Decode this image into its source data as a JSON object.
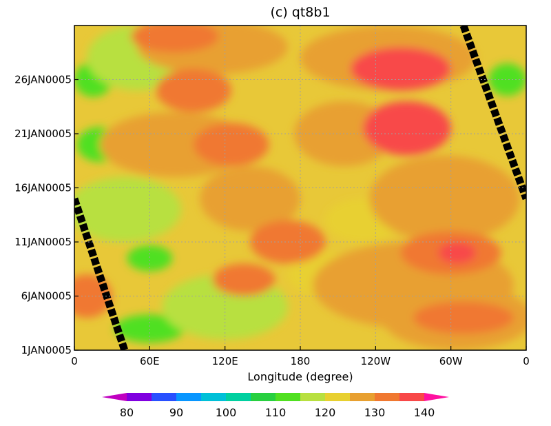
{
  "chart_data": {
    "type": "heatmap",
    "title": "(c) qt8b1",
    "xlabel": "Longitude (degree)",
    "ylabel": "",
    "x_ticks": [
      "0",
      "60E",
      "120E",
      "180",
      "120W",
      "60W",
      "0"
    ],
    "y_ticks": [
      "1JAN0005",
      "6JAN0005",
      "11JAN0005",
      "16JAN0005",
      "21JAN0005",
      "26JAN0005"
    ],
    "xlim": [
      0,
      360
    ],
    "ylim_days": [
      1,
      31
    ],
    "grid": true,
    "levels": [
      80,
      85,
      90,
      95,
      100,
      105,
      110,
      115,
      120,
      125,
      130,
      135,
      140
    ],
    "colorbar_labels": [
      "80",
      "90",
      "100",
      "110",
      "120",
      "130",
      "140"
    ],
    "colorbar_colors": [
      "#c000c0",
      "#8000e0",
      "#2850ff",
      "#0896ff",
      "#00c0d8",
      "#00d0a0",
      "#28d040",
      "#50e020",
      "#b8e040",
      "#e8d030",
      "#e8a030",
      "#f07830",
      "#f84848",
      "#ff10a0"
    ],
    "background_color": "#e8c838",
    "blobs": [
      {
        "lon": 15,
        "day": 26,
        "rlon": 15,
        "rday": 1.6,
        "value": 112
      },
      {
        "lon": 20,
        "day": 20,
        "rlon": 18,
        "rday": 1.6,
        "value": 112
      },
      {
        "lon": 345,
        "day": 26,
        "rlon": 15,
        "rday": 1.5,
        "value": 112
      },
      {
        "lon": 60,
        "day": 3,
        "rlon": 28,
        "rday": 1.3,
        "value": 112
      },
      {
        "lon": 60,
        "day": 9.5,
        "rlon": 18,
        "rday": 1.2,
        "value": 114
      },
      {
        "lon": 40,
        "day": 14,
        "rlon": 45,
        "rday": 3,
        "value": 119
      },
      {
        "lon": 50,
        "day": 28,
        "rlon": 40,
        "rday": 3,
        "value": 119
      },
      {
        "lon": 120,
        "day": 5,
        "rlon": 50,
        "rday": 3,
        "value": 119
      },
      {
        "lon": 200,
        "day": 8,
        "rlon": 30,
        "rday": 2,
        "value": 121
      },
      {
        "lon": 230,
        "day": 13,
        "rlon": 30,
        "rday": 2,
        "value": 121
      },
      {
        "lon": 140,
        "day": 15,
        "rlon": 40,
        "rday": 3,
        "value": 128
      },
      {
        "lon": 215,
        "day": 21,
        "rlon": 40,
        "rday": 3,
        "value": 128
      },
      {
        "lon": 270,
        "day": 7,
        "rlon": 80,
        "rday": 4,
        "value": 128
      },
      {
        "lon": 250,
        "day": 28,
        "rlon": 70,
        "rday": 3,
        "value": 128
      },
      {
        "lon": 80,
        "day": 20,
        "rlon": 60,
        "rday": 3,
        "value": 128
      },
      {
        "lon": 110,
        "day": 29,
        "rlon": 60,
        "rday": 2.5,
        "value": 128
      },
      {
        "lon": 295,
        "day": 15,
        "rlon": 60,
        "rday": 4,
        "value": 129
      },
      {
        "lon": 305,
        "day": 4,
        "rlon": 60,
        "rday": 3,
        "value": 129
      },
      {
        "lon": 80,
        "day": 30,
        "rlon": 35,
        "rday": 1.5,
        "value": 133
      },
      {
        "lon": 95,
        "day": 25,
        "rlon": 30,
        "rday": 2,
        "value": 133
      },
      {
        "lon": 125,
        "day": 20,
        "rlon": 30,
        "rday": 2,
        "value": 133
      },
      {
        "lon": 170,
        "day": 11,
        "rlon": 30,
        "rday": 2,
        "value": 133
      },
      {
        "lon": 135,
        "day": 7.5,
        "rlon": 25,
        "rday": 1.5,
        "value": 133
      },
      {
        "lon": 265,
        "day": 21.5,
        "rlon": 35,
        "rday": 2.5,
        "value": 136
      },
      {
        "lon": 260,
        "day": 27,
        "rlon": 40,
        "rday": 2,
        "value": 136
      },
      {
        "lon": 300,
        "day": 10,
        "rlon": 40,
        "rday": 2,
        "value": 133
      },
      {
        "lon": 310,
        "day": 4,
        "rlon": 40,
        "rday": 1.5,
        "value": 133
      },
      {
        "lon": 10,
        "day": 6,
        "rlon": 20,
        "rday": 2,
        "value": 133
      },
      {
        "lon": 275,
        "day": 22,
        "rlon": 20,
        "rday": 1.3,
        "value": 138
      },
      {
        "lon": 260,
        "day": 27.3,
        "rlon": 25,
        "rday": 1.3,
        "value": 138
      },
      {
        "lon": 305,
        "day": 10,
        "rlon": 15,
        "rday": 1,
        "value": 138
      }
    ],
    "lines": [
      {
        "points": [
          [
            0,
            15
          ],
          [
            40,
            1
          ]
        ]
      },
      {
        "points": [
          [
            310,
            31
          ],
          [
            360,
            15
          ]
        ]
      }
    ]
  }
}
